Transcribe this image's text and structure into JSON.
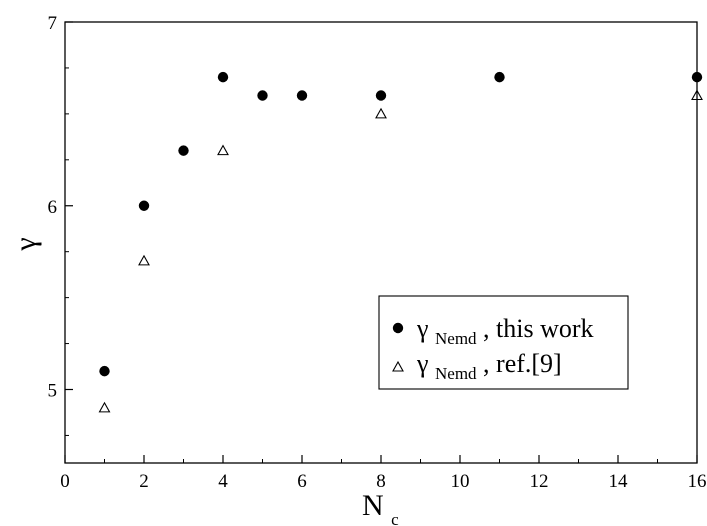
{
  "chart_data": {
    "type": "scatter",
    "title": "",
    "xlabel": {
      "main": "N",
      "sub": "c"
    },
    "ylabel": "γ",
    "xlim": [
      0,
      16
    ],
    "ylim": [
      4.6,
      7
    ],
    "x_ticks": [
      0,
      2,
      4,
      6,
      8,
      10,
      12,
      14,
      16
    ],
    "y_ticks": [
      5,
      6,
      7
    ],
    "y_minor_ticks": [
      4.75,
      5.25,
      5.5,
      5.75,
      6.25,
      6.5,
      6.75
    ],
    "x_minor_ticks": [
      1,
      3,
      5,
      7,
      9,
      11,
      13,
      15
    ],
    "grid": false,
    "legend_position": "lower-right",
    "series": [
      {
        "marker": "filled-circle",
        "color": "#000000",
        "legend": {
          "symbol": "γ",
          "sub": "Nemd",
          "suffix": ", this work"
        },
        "x": [
          1,
          2,
          3,
          4,
          5,
          6,
          8,
          11,
          16
        ],
        "y": [
          5.1,
          6.0,
          6.3,
          6.7,
          6.6,
          6.6,
          6.6,
          6.7,
          6.7
        ]
      },
      {
        "marker": "open-triangle",
        "color": "#000000",
        "legend": {
          "symbol": "γ",
          "sub": "Nemd",
          "suffix": ", ref.[9]"
        },
        "x": [
          1,
          2,
          4,
          8,
          16
        ],
        "y": [
          4.9,
          5.7,
          6.3,
          6.5,
          6.6
        ]
      }
    ]
  }
}
